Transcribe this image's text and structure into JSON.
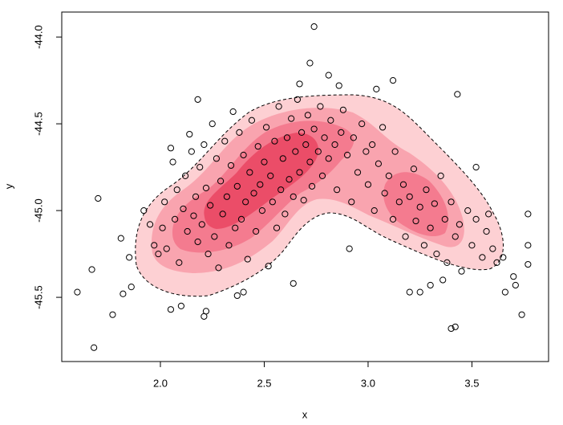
{
  "chart_data": {
    "type": "scatter",
    "x_label": "x",
    "y_label": "y",
    "color": "#000000",
    "xlim": [
      1.525,
      3.869
    ],
    "ylim": [
      -45.87,
      -43.856
    ],
    "xticks": [
      {
        "value": 2,
        "label": "2.0"
      },
      2.5,
      {
        "value": 3,
        "label": "3.0"
      },
      3.5
    ],
    "yticks": [
      {
        "value": -44,
        "label": "-44.0"
      },
      -44.5,
      {
        "value": -45,
        "label": "-45.0"
      },
      -45.5
    ],
    "x": [
      2.74,
      2.72,
      2.81,
      1.68,
      1.6,
      1.67,
      1.7,
      3.42,
      3.4,
      3.43,
      3.77,
      3.77,
      3.77,
      3.74,
      1.77,
      1.81,
      3.12,
      3.04,
      2.18,
      1.85,
      1.86,
      1.82,
      2.05,
      2.1,
      2.22,
      2.21,
      3.65,
      3.7,
      3.71,
      3.66,
      3.52,
      3.2,
      3.25,
      3.3,
      3.36,
      2.91,
      2.64,
      2.67,
      2.86,
      2.4,
      2.37,
      1.92,
      1.95,
      1.97,
      1.99,
      2.01,
      2.02,
      2.03,
      2.05,
      2.06,
      2.07,
      2.08,
      2.09,
      2.11,
      2.12,
      2.13,
      2.14,
      2.15,
      2.16,
      2.17,
      2.18,
      2.19,
      2.2,
      2.21,
      2.22,
      2.23,
      2.24,
      2.25,
      2.26,
      2.27,
      2.28,
      2.29,
      2.3,
      2.31,
      2.32,
      2.33,
      2.34,
      2.35,
      2.36,
      2.37,
      2.38,
      2.39,
      2.4,
      2.41,
      2.42,
      2.43,
      2.44,
      2.45,
      2.46,
      2.47,
      2.48,
      2.49,
      2.5,
      2.51,
      2.52,
      2.53,
      2.54,
      2.55,
      2.56,
      2.57,
      2.58,
      2.59,
      2.6,
      2.61,
      2.62,
      2.63,
      2.64,
      2.65,
      2.66,
      2.67,
      2.68,
      2.69,
      2.7,
      2.71,
      2.72,
      2.73,
      2.74,
      2.76,
      2.77,
      2.78,
      2.79,
      2.81,
      2.82,
      2.84,
      2.85,
      2.87,
      2.88,
      2.9,
      2.92,
      2.93,
      2.95,
      2.97,
      2.99,
      3.0,
      3.02,
      3.03,
      3.05,
      3.07,
      3.08,
      3.1,
      3.12,
      3.13,
      3.15,
      3.17,
      3.18,
      3.2,
      3.22,
      3.23,
      3.25,
      3.27,
      3.28,
      3.3,
      3.32,
      3.33,
      3.35,
      3.37,
      3.38,
      3.4,
      3.42,
      3.44,
      3.45,
      3.48,
      3.5,
      3.52,
      3.55,
      3.57,
      3.6,
      3.62,
      3.58
    ],
    "values": [
      -43.94,
      -44.15,
      -44.22,
      -45.79,
      -45.47,
      -45.34,
      -44.93,
      -45.67,
      -45.68,
      -44.33,
      -45.02,
      -45.31,
      -45.2,
      -45.6,
      -45.6,
      -45.16,
      -44.25,
      -44.3,
      -44.36,
      -45.27,
      -45.44,
      -45.48,
      -45.57,
      -45.55,
      -45.58,
      -45.61,
      -45.27,
      -45.38,
      -45.43,
      -45.47,
      -44.75,
      -45.47,
      -45.47,
      -45.43,
      -45.4,
      -45.22,
      -45.42,
      -44.27,
      -44.28,
      -45.47,
      -45.49,
      -45.0,
      -45.08,
      -45.2,
      -45.25,
      -45.1,
      -44.95,
      -45.22,
      -44.64,
      -44.72,
      -45.05,
      -44.88,
      -45.3,
      -44.99,
      -44.8,
      -45.12,
      -44.56,
      -44.66,
      -45.03,
      -44.92,
      -45.18,
      -44.75,
      -45.08,
      -44.62,
      -44.87,
      -45.25,
      -44.97,
      -44.5,
      -45.15,
      -44.7,
      -45.33,
      -44.83,
      -45.02,
      -44.6,
      -44.92,
      -45.2,
      -44.74,
      -44.43,
      -45.1,
      -44.86,
      -44.55,
      -45.05,
      -44.68,
      -44.95,
      -45.28,
      -44.78,
      -44.48,
      -44.9,
      -45.12,
      -44.63,
      -44.85,
      -45.0,
      -44.72,
      -44.52,
      -45.32,
      -44.8,
      -44.95,
      -44.6,
      -45.1,
      -44.4,
      -44.88,
      -44.7,
      -45.02,
      -44.58,
      -44.82,
      -44.47,
      -44.92,
      -44.66,
      -44.36,
      -44.78,
      -44.55,
      -44.94,
      -44.62,
      -44.45,
      -44.72,
      -44.86,
      -44.53,
      -44.66,
      -44.4,
      -44.8,
      -44.58,
      -44.7,
      -44.48,
      -44.62,
      -44.88,
      -44.55,
      -44.42,
      -44.68,
      -44.95,
      -44.58,
      -44.78,
      -44.5,
      -44.66,
      -44.85,
      -44.62,
      -45.0,
      -44.73,
      -44.52,
      -44.9,
      -44.8,
      -45.05,
      -44.66,
      -44.95,
      -44.85,
      -45.15,
      -44.92,
      -44.76,
      -45.06,
      -44.98,
      -45.2,
      -44.88,
      -45.1,
      -44.96,
      -45.25,
      -44.8,
      -45.05,
      -45.3,
      -44.95,
      -45.15,
      -45.08,
      -45.35,
      -45.0,
      -45.2,
      -45.05,
      -45.27,
      -45.12,
      -45.22,
      -45.3,
      -45.02
    ]
  }
}
